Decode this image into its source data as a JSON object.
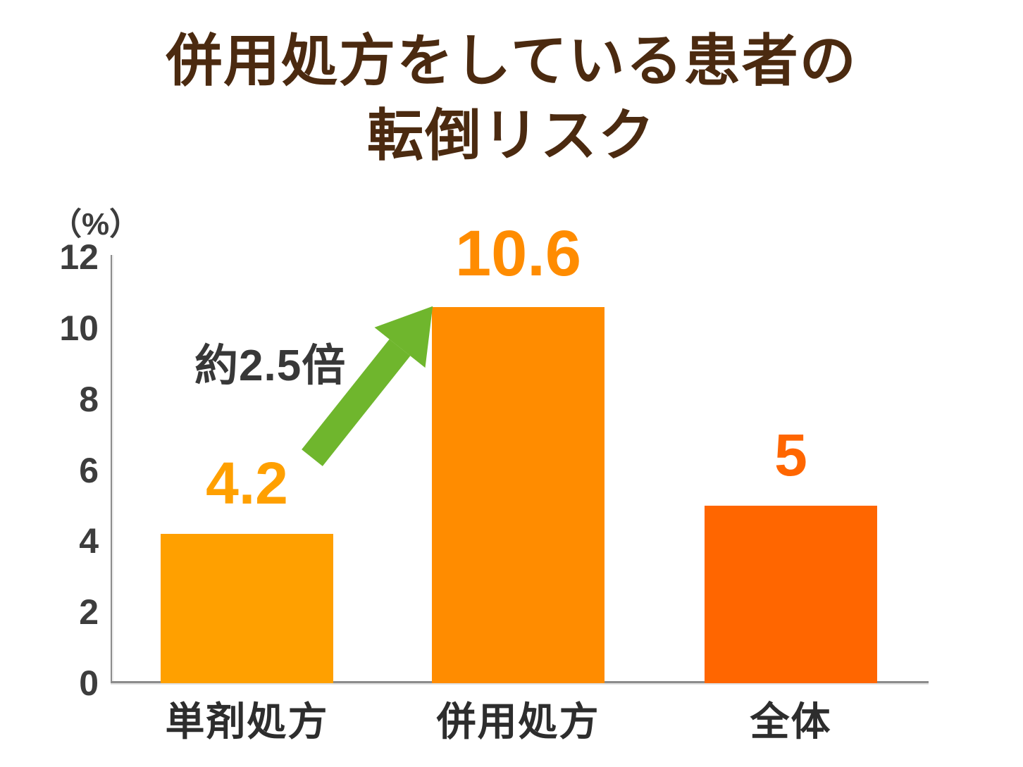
{
  "title": {
    "line1": "併用処方をしている患者の",
    "line2": "転倒リスク"
  },
  "chart_data": {
    "type": "bar",
    "title": "併用処方をしている患者の転倒リスク",
    "unit_label": "（%）",
    "categories": [
      "単剤処方",
      "併用処方",
      "全体"
    ],
    "values": [
      4.2,
      10.6,
      5
    ],
    "value_labels": [
      "4.2",
      "10.6",
      "5"
    ],
    "bar_colors": [
      "#FFA000",
      "#FF8C00",
      "#FF6600"
    ],
    "ylim": [
      0,
      12
    ],
    "yticks": [
      0,
      2,
      4,
      6,
      8,
      10,
      12
    ],
    "grid": false,
    "legend": "none",
    "annotation": {
      "text": "約2.5倍",
      "arrow_color": "#6FB62D",
      "from_category": "単剤処方",
      "to_category": "併用処方"
    }
  },
  "colors": {
    "title": "#4B2A10",
    "axis": "#8C8C8C",
    "tick_text": "#3D3D3D",
    "category_text": "#2D2D2D",
    "annotation_text": "#383838"
  }
}
